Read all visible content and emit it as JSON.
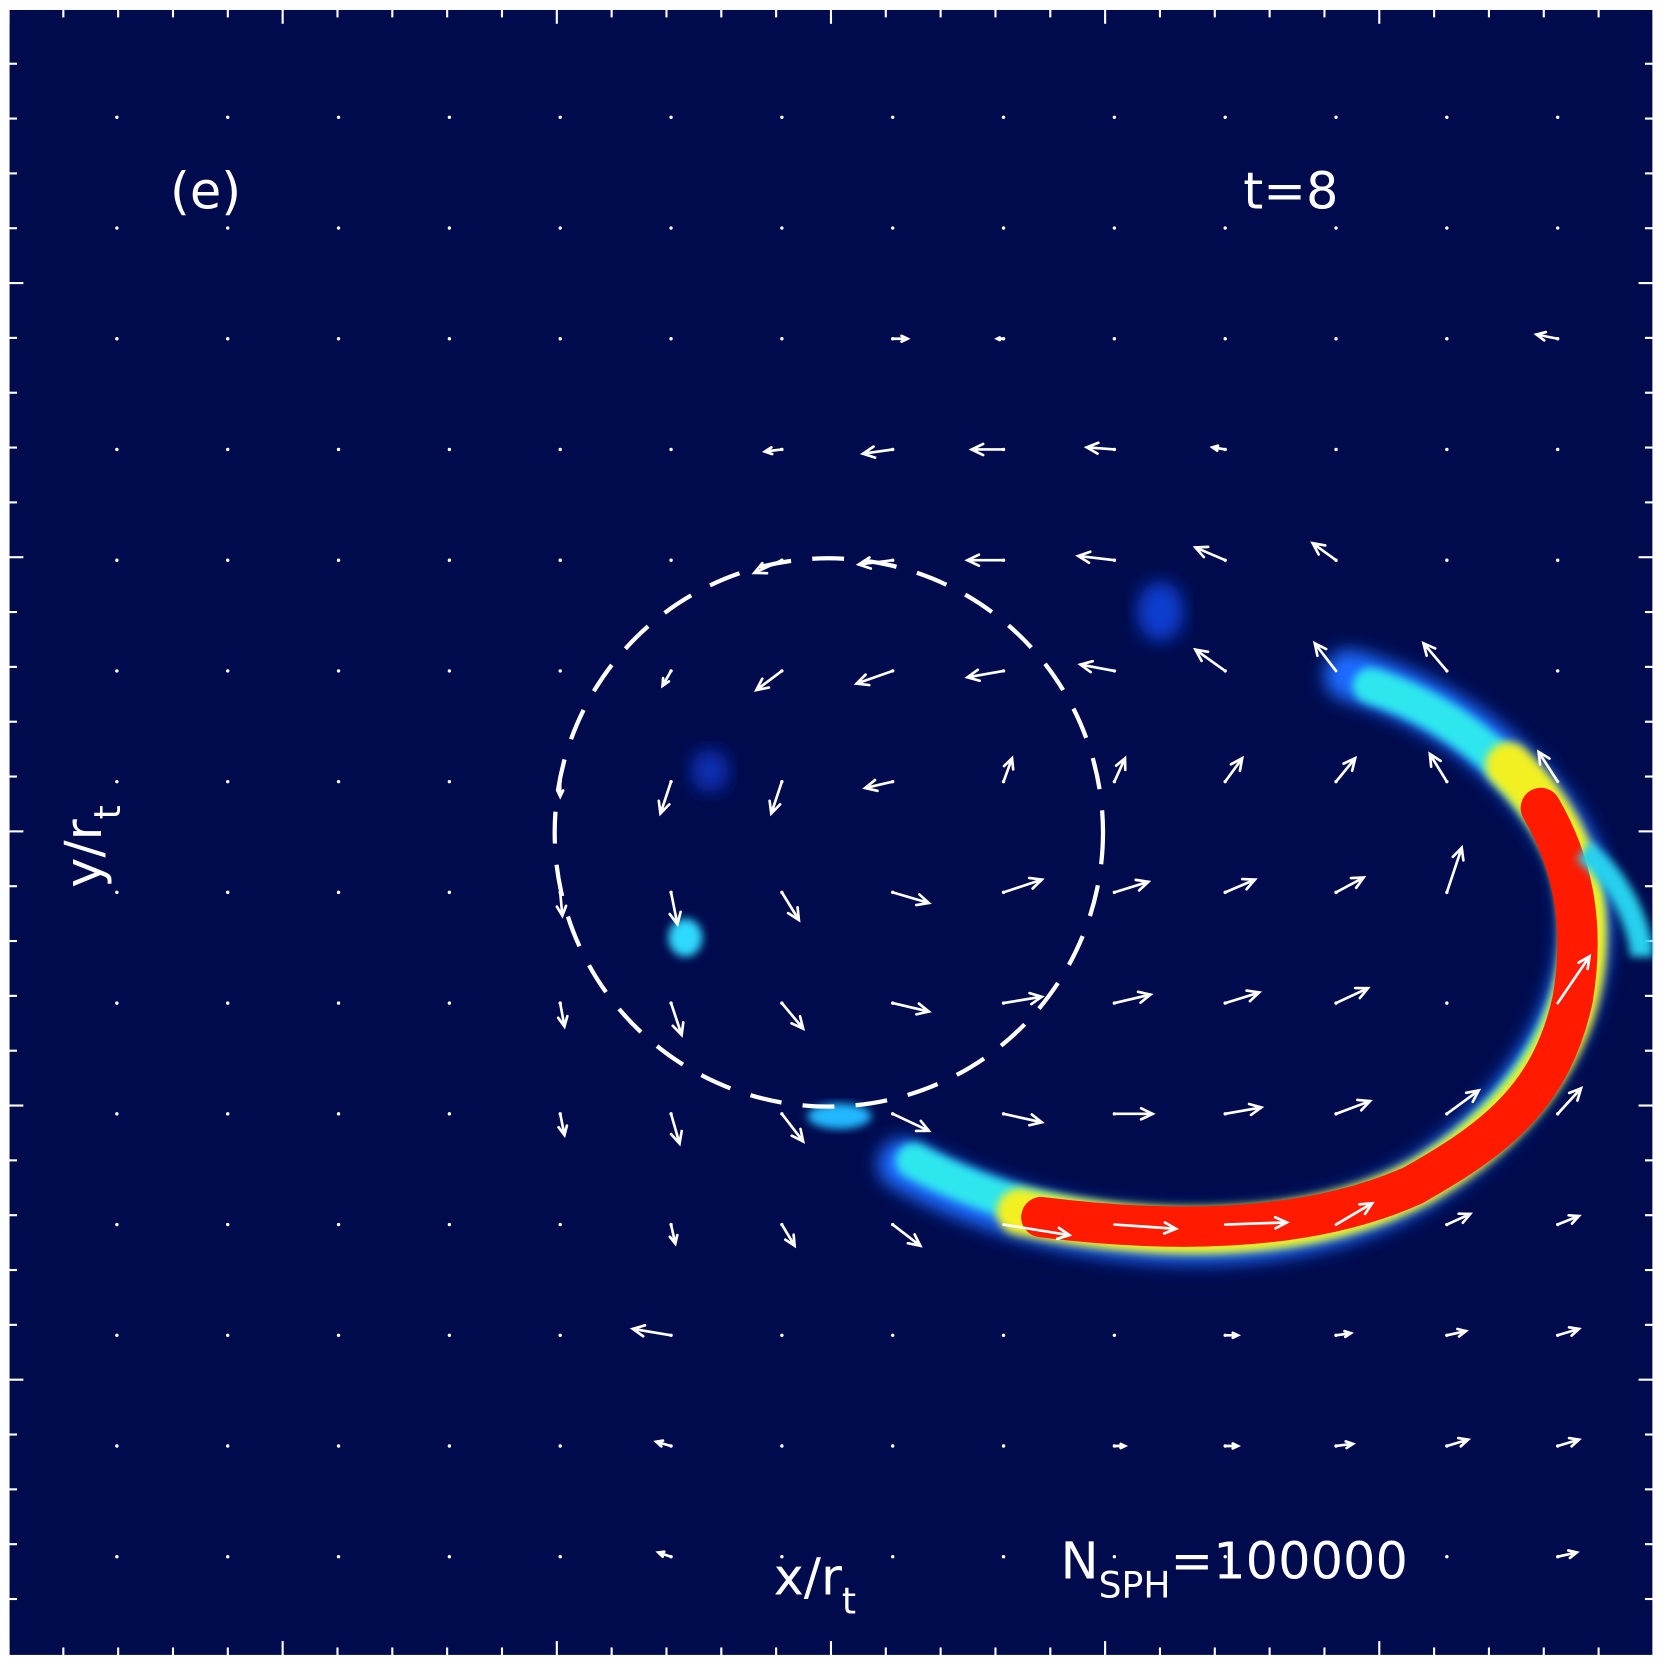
{
  "panel": {
    "label": "(e)",
    "time": "t=8",
    "x_axis": {
      "main": "x/r",
      "sub": "t"
    },
    "y_axis": {
      "main": "y/r",
      "sub": "t"
    },
    "particles": {
      "main": "N",
      "sub": "SPH",
      "rest": "=100000"
    }
  }
}
